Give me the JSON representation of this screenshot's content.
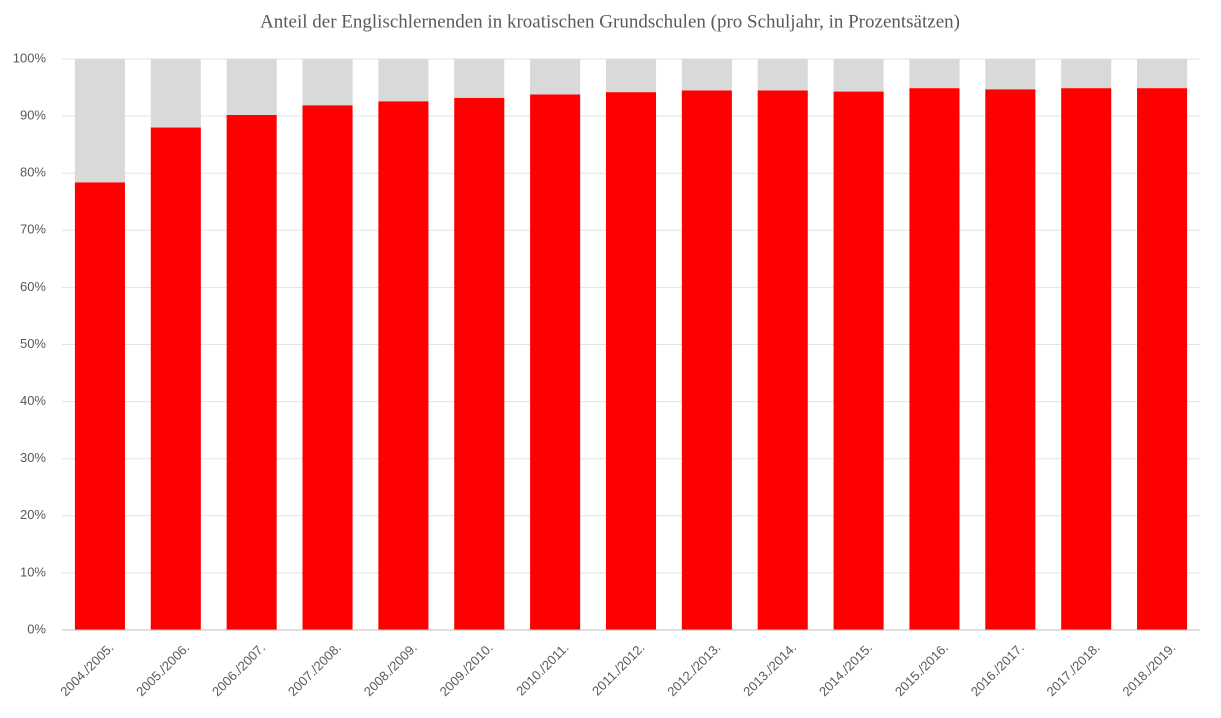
{
  "chart_data": {
    "type": "stacked_bar",
    "title": "Anteil der Englischlernenden in kroatischen Grundschulen (pro Schuljahr, in Prozentsätzen)",
    "categories": [
      "2004./2005.",
      "2005./2006.",
      "2006./2007.",
      "2007./2008.",
      "2008./2009.",
      "2009./2010.",
      "2010./2011.",
      "2011./2012.",
      "2012./2013.",
      "2013./2014.",
      "2014./2015.",
      "2015./2016.",
      "2016./2017.",
      "2017./2018.",
      "2018./2019."
    ],
    "series": [
      {
        "color": "#ff0000",
        "values": [
          78.4,
          88.0,
          90.2,
          91.9,
          92.6,
          93.2,
          93.8,
          94.2,
          94.5,
          94.5,
          94.3,
          94.9,
          94.7,
          94.9,
          94.9
        ]
      },
      {
        "color": "#d9d9d9",
        "values": [
          21.6,
          12.0,
          9.8,
          8.1,
          7.4,
          6.8,
          6.2,
          5.8,
          5.5,
          5.5,
          5.7,
          5.1,
          5.3,
          5.1,
          5.1
        ]
      }
    ],
    "ylim": [
      0,
      100
    ],
    "yticks": [
      {
        "value": 0,
        "label": "0%"
      },
      {
        "value": 10,
        "label": "10%"
      },
      {
        "value": 20,
        "label": "20%"
      },
      {
        "value": 30,
        "label": "30%"
      },
      {
        "value": 40,
        "label": "40%"
      },
      {
        "value": 50,
        "label": "50%"
      },
      {
        "value": 60,
        "label": "60%"
      },
      {
        "value": 70,
        "label": "70%"
      },
      {
        "value": 80,
        "label": "80%"
      },
      {
        "value": 90,
        "label": "90%"
      },
      {
        "value": 100,
        "label": "100%"
      }
    ],
    "grid": true
  }
}
